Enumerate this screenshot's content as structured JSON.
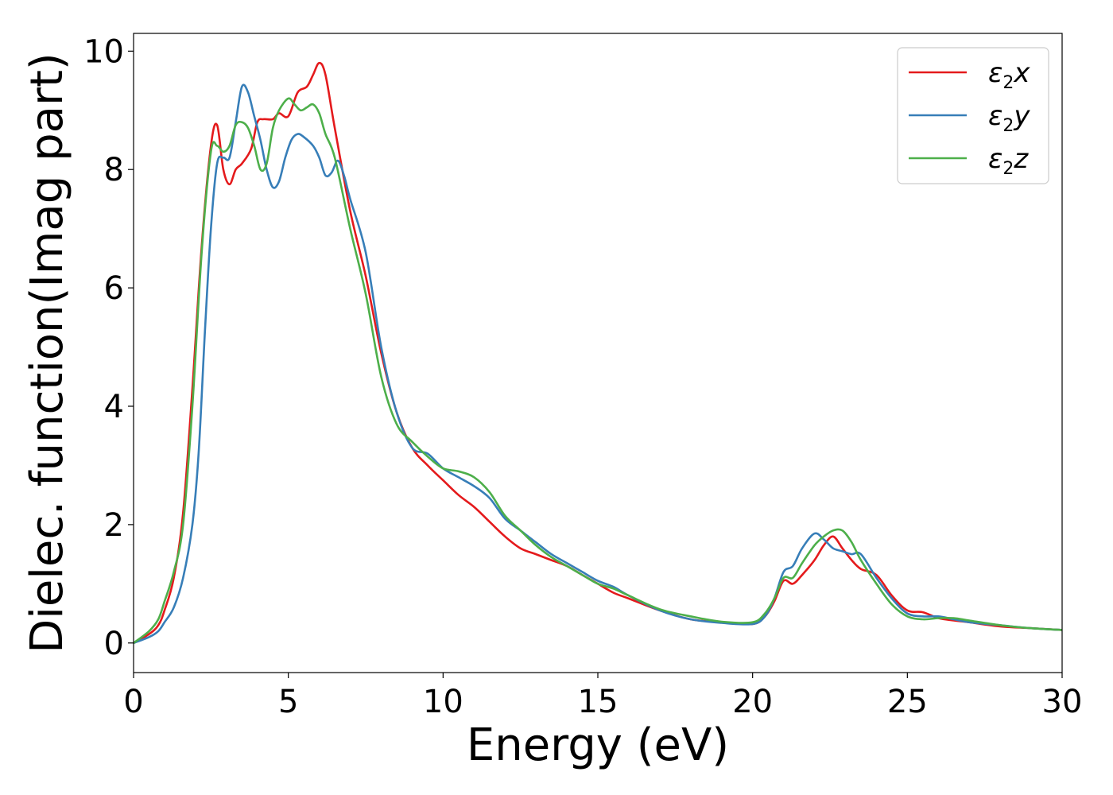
{
  "chart_data": {
    "type": "line",
    "xlabel": "Energy (eV)",
    "ylabel": "Dielec. function(Imag part)",
    "xlim": [
      0,
      30
    ],
    "ylim": [
      -0.5,
      10.3
    ],
    "xticks": [
      0,
      5,
      10,
      15,
      20,
      25,
      30
    ],
    "yticks": [
      0,
      2,
      4,
      6,
      8,
      10
    ],
    "grid": false,
    "legend_position": "top-right",
    "series": [
      {
        "name": "ε2x",
        "base": "ε",
        "sub": "2",
        "var": "x",
        "color": "#e41a1c",
        "x": [
          0,
          0.5,
          0.8,
          1.0,
          1.3,
          1.6,
          1.9,
          2.2,
          2.5,
          2.7,
          2.9,
          3.1,
          3.3,
          3.5,
          3.8,
          4.0,
          4.2,
          4.5,
          4.7,
          5.0,
          5.3,
          5.6,
          5.8,
          6.0,
          6.2,
          6.5,
          7.0,
          7.5,
          8.0,
          8.5,
          9.0,
          9.5,
          10.0,
          10.5,
          11.0,
          11.5,
          12.0,
          12.5,
          13.0,
          13.5,
          14.0,
          14.5,
          15.0,
          15.5,
          16.0,
          17.0,
          18.0,
          19.0,
          20.0,
          20.4,
          20.7,
          21.0,
          21.3,
          21.6,
          22.0,
          22.3,
          22.6,
          22.9,
          23.2,
          23.5,
          24.0,
          24.5,
          25.0,
          25.5,
          26.0,
          26.5,
          27.0,
          28.0,
          29.0,
          30.0
        ],
        "y": [
          0.0,
          0.15,
          0.3,
          0.55,
          1.1,
          2.2,
          4.3,
          6.7,
          8.4,
          8.75,
          8.0,
          7.75,
          8.0,
          8.1,
          8.35,
          8.8,
          8.85,
          8.85,
          8.95,
          8.9,
          9.3,
          9.4,
          9.6,
          9.8,
          9.6,
          8.7,
          7.3,
          6.2,
          4.9,
          3.9,
          3.3,
          3.0,
          2.75,
          2.5,
          2.3,
          2.05,
          1.8,
          1.6,
          1.5,
          1.4,
          1.3,
          1.15,
          1.0,
          0.85,
          0.75,
          0.55,
          0.4,
          0.35,
          0.32,
          0.45,
          0.7,
          1.05,
          1.0,
          1.15,
          1.4,
          1.65,
          1.8,
          1.6,
          1.4,
          1.25,
          1.15,
          0.8,
          0.55,
          0.52,
          0.42,
          0.38,
          0.35,
          0.28,
          0.25,
          0.22
        ]
      },
      {
        "name": "ε2y",
        "base": "ε",
        "sub": "2",
        "var": "y",
        "color": "#377eb8",
        "x": [
          0,
          0.5,
          0.8,
          1.0,
          1.3,
          1.6,
          1.9,
          2.1,
          2.3,
          2.5,
          2.7,
          2.9,
          3.1,
          3.3,
          3.5,
          3.7,
          3.9,
          4.1,
          4.3,
          4.5,
          4.7,
          4.9,
          5.1,
          5.3,
          5.5,
          5.8,
          6.0,
          6.2,
          6.4,
          6.6,
          6.8,
          7.0,
          7.5,
          8.0,
          8.5,
          9.0,
          9.5,
          10.0,
          10.5,
          11.0,
          11.5,
          12.0,
          12.5,
          13.0,
          13.5,
          14.0,
          14.5,
          15.0,
          15.5,
          16.0,
          17.0,
          18.0,
          19.0,
          20.0,
          20.4,
          20.7,
          21.0,
          21.3,
          21.6,
          22.0,
          22.3,
          22.6,
          22.9,
          23.2,
          23.5,
          24.0,
          24.5,
          25.0,
          25.5,
          26.0,
          26.5,
          27.0,
          28.0,
          29.0,
          30.0
        ],
        "y": [
          0.0,
          0.1,
          0.2,
          0.35,
          0.6,
          1.1,
          2.0,
          3.2,
          5.2,
          7.0,
          8.1,
          8.2,
          8.2,
          8.8,
          9.4,
          9.3,
          8.9,
          8.5,
          8.0,
          7.7,
          7.8,
          8.2,
          8.5,
          8.6,
          8.55,
          8.4,
          8.2,
          7.9,
          7.95,
          8.15,
          7.9,
          7.5,
          6.6,
          5.0,
          3.9,
          3.3,
          3.2,
          2.95,
          2.8,
          2.65,
          2.45,
          2.1,
          1.9,
          1.7,
          1.5,
          1.35,
          1.2,
          1.05,
          0.95,
          0.8,
          0.55,
          0.4,
          0.34,
          0.32,
          0.45,
          0.75,
          1.2,
          1.3,
          1.6,
          1.85,
          1.75,
          1.6,
          1.55,
          1.5,
          1.5,
          1.1,
          0.75,
          0.5,
          0.45,
          0.45,
          0.4,
          0.35,
          0.3,
          0.25,
          0.22
        ]
      },
      {
        "name": "ε2z",
        "base": "ε",
        "sub": "2",
        "var": "z",
        "color": "#4daf4a",
        "x": [
          0,
          0.5,
          0.8,
          1.0,
          1.3,
          1.6,
          1.9,
          2.2,
          2.5,
          2.7,
          2.9,
          3.1,
          3.3,
          3.5,
          3.7,
          3.9,
          4.1,
          4.3,
          4.5,
          4.7,
          5.0,
          5.2,
          5.4,
          5.6,
          5.8,
          6.0,
          6.2,
          6.5,
          7.0,
          7.5,
          8.0,
          8.5,
          9.0,
          9.5,
          10.0,
          10.5,
          11.0,
          11.5,
          12.0,
          12.5,
          13.0,
          13.5,
          14.0,
          14.5,
          15.0,
          15.5,
          16.0,
          17.0,
          18.0,
          19.0,
          20.0,
          20.4,
          20.7,
          21.0,
          21.3,
          21.6,
          22.0,
          22.3,
          22.6,
          22.9,
          23.2,
          23.5,
          24.0,
          24.5,
          25.0,
          25.5,
          26.0,
          26.5,
          27.0,
          28.0,
          29.0,
          30.0
        ],
        "y": [
          0.0,
          0.2,
          0.4,
          0.7,
          1.2,
          2.0,
          4.0,
          6.6,
          8.3,
          8.4,
          8.3,
          8.4,
          8.75,
          8.8,
          8.7,
          8.4,
          8.0,
          8.1,
          8.7,
          9.0,
          9.2,
          9.1,
          9.0,
          9.05,
          9.1,
          8.95,
          8.6,
          8.2,
          7.0,
          5.9,
          4.5,
          3.7,
          3.4,
          3.15,
          2.95,
          2.9,
          2.8,
          2.55,
          2.15,
          1.9,
          1.65,
          1.45,
          1.3,
          1.15,
          1.0,
          0.92,
          0.8,
          0.57,
          0.45,
          0.36,
          0.35,
          0.5,
          0.75,
          1.1,
          1.1,
          1.35,
          1.65,
          1.8,
          1.9,
          1.9,
          1.7,
          1.4,
          1.0,
          0.65,
          0.45,
          0.4,
          0.42,
          0.42,
          0.38,
          0.3,
          0.25,
          0.22
        ]
      }
    ]
  }
}
